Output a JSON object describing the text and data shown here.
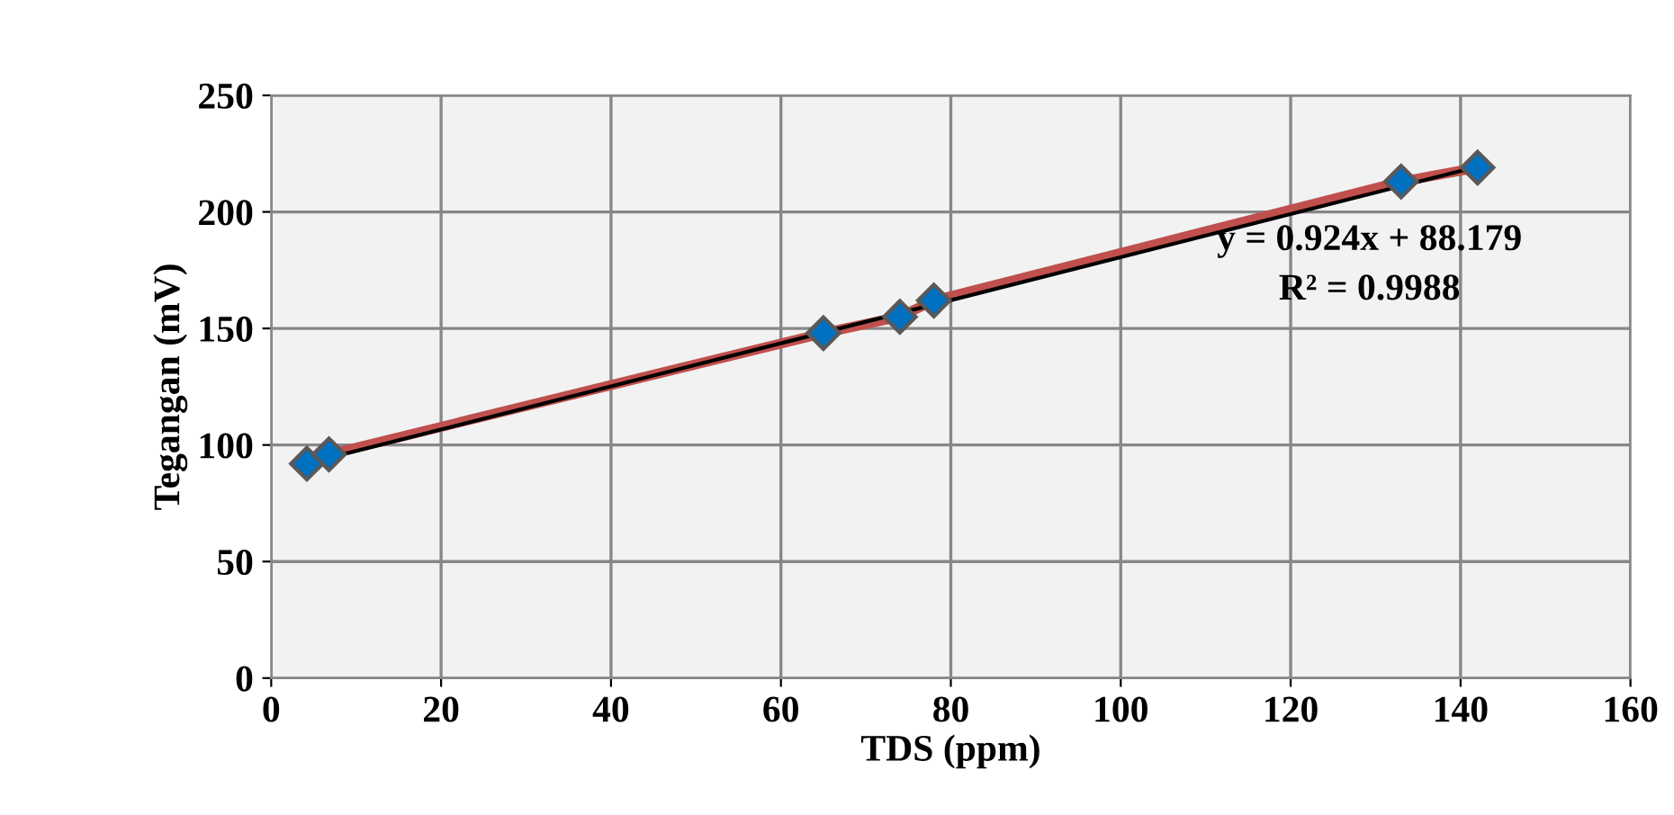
{
  "chart_data": {
    "type": "line",
    "xlabel": "TDS (ppm)",
    "ylabel": "Tegangan (mV)",
    "xlim": [
      0,
      160
    ],
    "xticks": [
      0,
      20,
      40,
      60,
      80,
      100,
      120,
      140,
      160
    ],
    "ylim": [
      0,
      250
    ],
    "yticks": [
      0,
      50,
      100,
      150,
      200,
      250
    ],
    "grid": true,
    "series": [
      {
        "color": "#c0504d",
        "marker": "diamond",
        "x": [
          4.2,
          6.8,
          65,
          74,
          78,
          133,
          142
        ],
        "values": [
          92,
          96,
          148,
          155,
          162,
          213,
          219
        ]
      },
      {
        "color": "#000000",
        "marker": "none",
        "x": [
          4,
          142
        ],
        "values": [
          91.9,
          219.4
        ]
      }
    ],
    "annotations": [
      "y = 0.924x + 88.179",
      "R² = 0.9988"
    ]
  }
}
